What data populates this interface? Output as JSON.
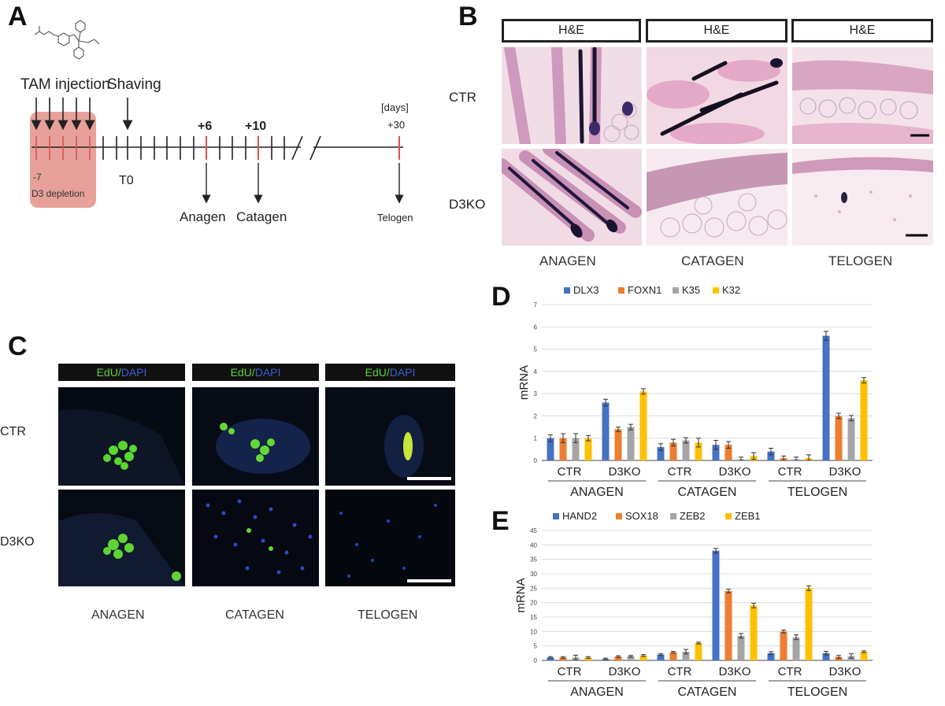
{
  "panels": {
    "a": "A",
    "b": "B",
    "c": "C",
    "d": "D",
    "e": "E"
  },
  "panel_a": {
    "tam_injection": "TAM injection",
    "shaving": "Shaving",
    "day_minus7": "-7",
    "d3_depletion": "D3 depletion",
    "t0": "T0",
    "plus6": "+6",
    "plus10": "+10",
    "days_unit": "[days]",
    "plus30": "+30",
    "anagen": "Anagen",
    "catagen": "Catagen",
    "telogen": "Telogen"
  },
  "panel_b": {
    "headers": [
      "H&E",
      "H&E",
      "H&E"
    ],
    "row_ctr": "CTR",
    "row_d3ko": "D3KO",
    "columns": [
      "ANAGEN",
      "CATAGEN",
      "TELOGEN"
    ]
  },
  "panel_c": {
    "edu": "EdU",
    "slash": "/",
    "dapi": "DAPI",
    "row_ctr": "CTR",
    "row_d3ko": "D3KO",
    "columns": [
      "ANAGEN",
      "CATAGEN",
      "TELOGEN"
    ]
  },
  "colors": {
    "blue": "#4472c4",
    "orange": "#ed7d31",
    "gray": "#a5a5a5",
    "yellow": "#ffc000",
    "timeline_red": "#d9534f",
    "depletion_box": "#e8a09a"
  },
  "chart_data": [
    {
      "id": "D",
      "type": "bar",
      "ylabel": "mRNA",
      "ylim": [
        0,
        7
      ],
      "yticks": [
        0,
        1,
        2,
        3,
        4,
        5,
        6,
        7
      ],
      "grid": true,
      "legend": "top-left",
      "groups": [
        "ANAGEN",
        "CATAGEN",
        "TELOGEN"
      ],
      "categories": [
        "CTR",
        "D3KO",
        "CTR",
        "D3KO",
        "CTR",
        "D3KO"
      ],
      "series": [
        {
          "name": "DLX3",
          "color": "#4472c4",
          "values": [
            1.0,
            2.6,
            0.6,
            0.7,
            0.4,
            5.6
          ],
          "errors": [
            0.15,
            0.15,
            0.15,
            0.2,
            0.15,
            0.2
          ]
        },
        {
          "name": "FOXN1",
          "color": "#ed7d31",
          "values": [
            1.0,
            1.4,
            0.8,
            0.7,
            0.1,
            2.0
          ],
          "errors": [
            0.2,
            0.1,
            0.15,
            0.15,
            0.1,
            0.12
          ]
        },
        {
          "name": "K35",
          "color": "#a5a5a5",
          "values": [
            1.0,
            1.5,
            0.9,
            0.05,
            0.05,
            1.9
          ],
          "errors": [
            0.2,
            0.12,
            0.12,
            0.1,
            0.1,
            0.12
          ]
        },
        {
          "name": "K32",
          "color": "#ffc000",
          "values": [
            1.0,
            3.1,
            0.8,
            0.2,
            0.1,
            3.6
          ],
          "errors": [
            0.12,
            0.12,
            0.2,
            0.15,
            0.15,
            0.12
          ]
        }
      ]
    },
    {
      "id": "E",
      "type": "bar",
      "ylabel": "mRNA",
      "ylim": [
        0,
        45
      ],
      "yticks": [
        0,
        5,
        10,
        15,
        20,
        25,
        30,
        35,
        40,
        45
      ],
      "grid": true,
      "legend": "top-left",
      "groups": [
        "ANAGEN",
        "CATAGEN",
        "TELOGEN"
      ],
      "categories": [
        "CTR",
        "D3KO",
        "CTR",
        "D3KO",
        "CTR",
        "D3KO"
      ],
      "series": [
        {
          "name": "HAND2",
          "color": "#4472c4",
          "values": [
            1.0,
            0.5,
            2.0,
            38.0,
            2.5,
            2.5
          ],
          "errors": [
            0.3,
            0.3,
            0.3,
            0.8,
            0.5,
            0.6
          ]
        },
        {
          "name": "SOX18",
          "color": "#ed7d31",
          "values": [
            1.0,
            1.3,
            2.8,
            24.0,
            10.0,
            1.2
          ],
          "errors": [
            0.3,
            0.3,
            0.3,
            0.6,
            0.5,
            0.5
          ]
        },
        {
          "name": "ZEB2",
          "color": "#a5a5a5",
          "values": [
            1.0,
            1.4,
            3.0,
            8.5,
            8.0,
            1.5
          ],
          "errors": [
            0.8,
            0.3,
            0.8,
            0.8,
            0.8,
            0.8
          ]
        },
        {
          "name": "ZEB1",
          "color": "#ffc000",
          "values": [
            1.0,
            1.7,
            6.0,
            19.0,
            25.0,
            3.0
          ],
          "errors": [
            0.3,
            0.3,
            0.3,
            0.8,
            0.8,
            0.3
          ]
        }
      ]
    }
  ]
}
